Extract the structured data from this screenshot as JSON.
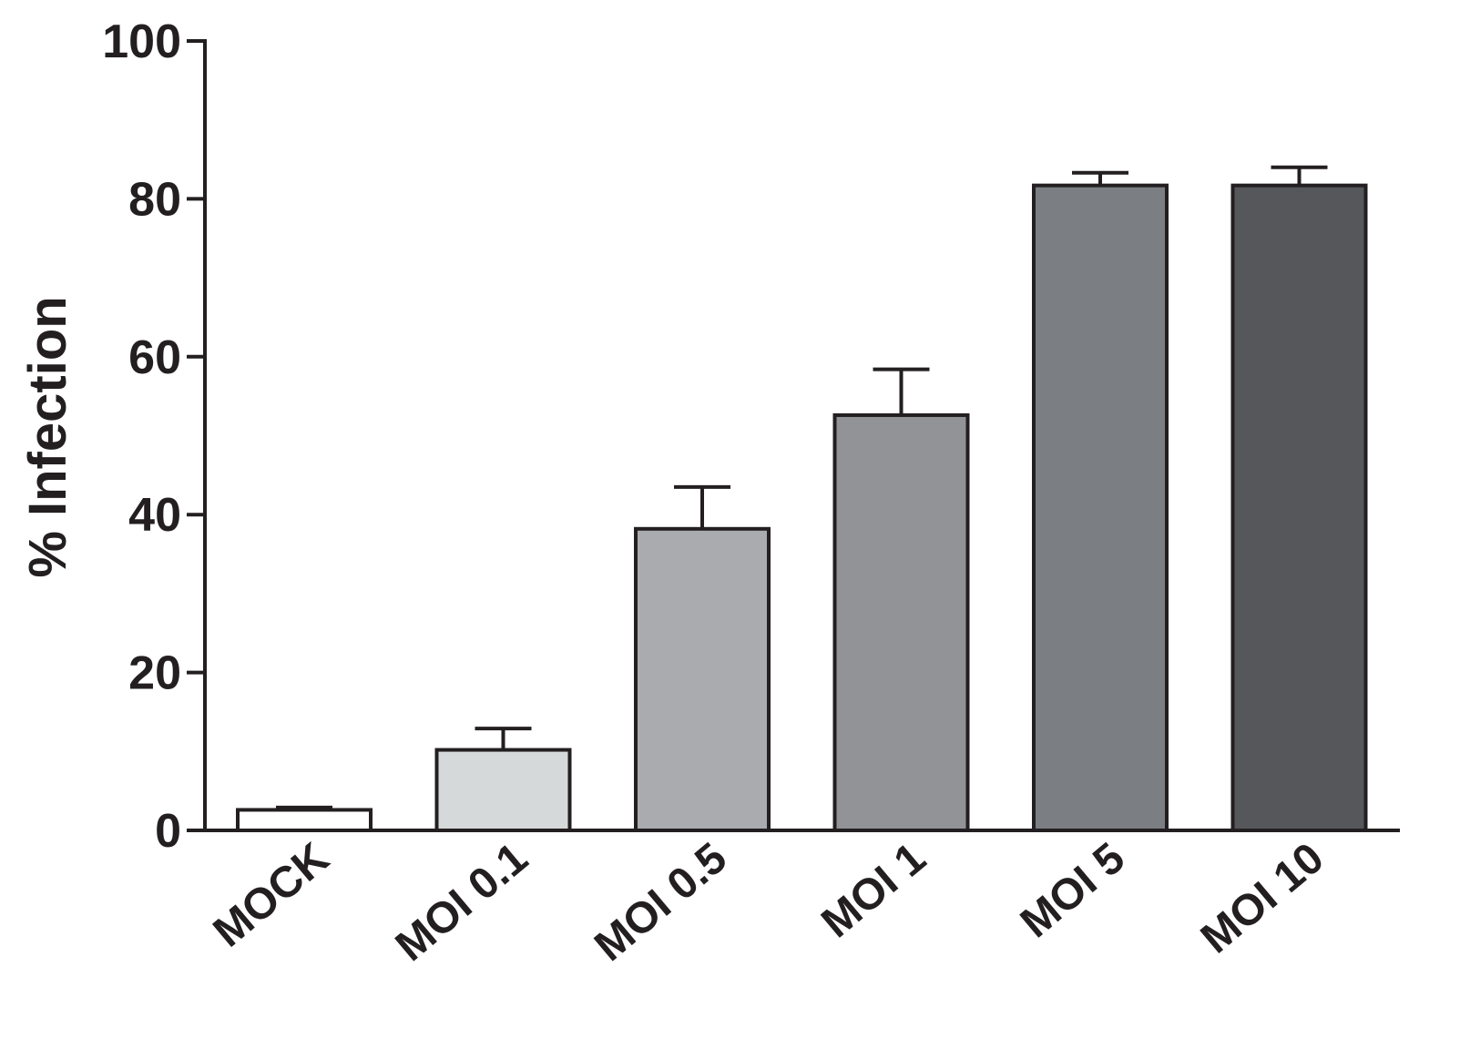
{
  "chart_data": {
    "type": "bar",
    "title": "",
    "xlabel": "",
    "ylabel": "% Infection",
    "ylim": [
      0,
      100
    ],
    "yticks": [
      0,
      20,
      40,
      60,
      80,
      100
    ],
    "grid": false,
    "legend": "none",
    "categories": [
      "MOCK",
      "MOI 0.1",
      "MOI 0.5",
      "MOI 1",
      "MOI 5",
      "MOI 10"
    ],
    "values": [
      2.6,
      10.2,
      38.2,
      52.6,
      81.7,
      81.7
    ],
    "errors": [
      0.3,
      2.7,
      5.3,
      5.8,
      1.6,
      2.3
    ],
    "colors": [
      "#ffffff",
      "#d6d9da",
      "#a9abaf",
      "#919397",
      "#7b7e82",
      "#55575a"
    ],
    "edge_color": "#231f20"
  }
}
